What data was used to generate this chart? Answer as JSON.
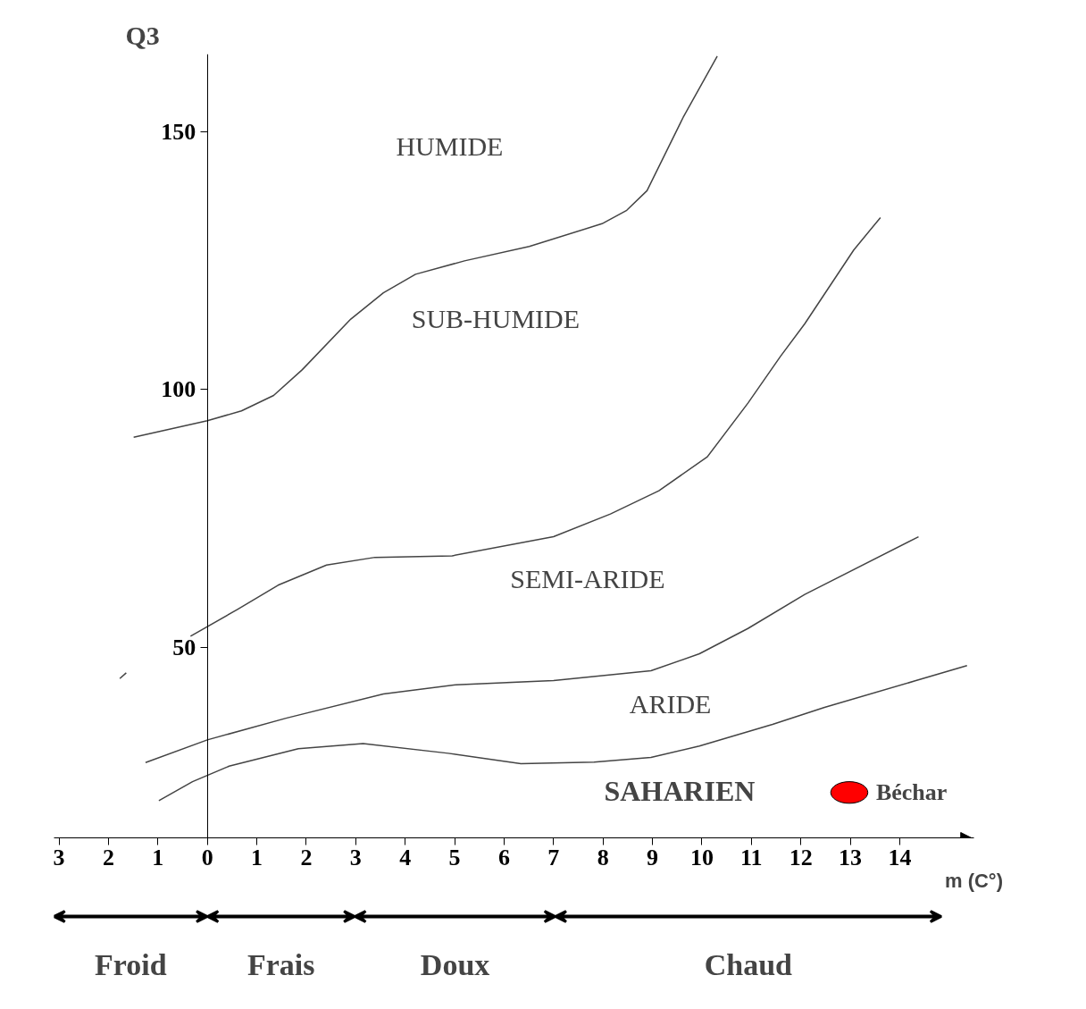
{
  "chart_data": {
    "type": "line",
    "xlabel": "m (C°)",
    "ylabel": "Q3",
    "xlim": [
      -3.1,
      15.5
    ],
    "ylim": [
      13,
      165
    ],
    "xticks": [
      {
        "value": -3,
        "label": "3"
      },
      {
        "value": -2,
        "label": "2"
      },
      {
        "value": -1,
        "label": "1"
      },
      0,
      1,
      2,
      3,
      4,
      5,
      6,
      7,
      8,
      9,
      10,
      11,
      12,
      13,
      14
    ],
    "yticks": [
      50,
      100,
      150
    ],
    "grid": false,
    "legend": false,
    "marker": "none",
    "line_style": "solid",
    "series": [
      {
        "color": "#444444",
        "x": [
          -1.49,
          0,
          0.69,
          1.34,
          1.92,
          2.9,
          3.56,
          4.21,
          5.2,
          6.51,
          7.98,
          8.48,
          8.89,
          9.62,
          10.31
        ],
        "values": [
          90.7,
          93.9,
          95.8,
          98.8,
          103.8,
          113.6,
          118.7,
          122.3,
          124.9,
          127.7,
          132.1,
          134.7,
          138.5,
          152.7,
          164.6
        ]
      },
      {
        "color": "#444444",
        "x": [
          -0.34,
          0.61,
          1.43,
          2.41,
          3.39,
          4.95,
          7.0,
          8.15,
          9.13,
          10.11,
          10.93,
          11.59,
          12.08,
          13.07,
          13.61
        ],
        "values": [
          52.1,
          57.3,
          62.0,
          65.9,
          67.4,
          67.7,
          71.4,
          75.8,
          80.3,
          86.9,
          97.3,
          106.4,
          112.7,
          127.0,
          133.3
        ]
      },
      {
        "color": "#444444",
        "x": [
          -1.77,
          -1.64
        ],
        "values": [
          43.9,
          45.0
        ]
      },
      {
        "color": "#444444",
        "x": [
          -1.25,
          0,
          1.59,
          3.56,
          5.03,
          7.0,
          8.97,
          9.95,
          10.93,
          12.08,
          14.38
        ],
        "values": [
          27.6,
          32.0,
          36.2,
          40.9,
          42.7,
          43.5,
          45.4,
          48.7,
          53.6,
          60.2,
          71.4
        ]
      },
      {
        "color": "#444444",
        "x": [
          -0.98,
          -0.3,
          0.44,
          1.84,
          3.15,
          4.87,
          6.34,
          7.82,
          8.97,
          9.95,
          11.43,
          12.48,
          15.36
        ],
        "values": [
          20.2,
          23.9,
          26.9,
          30.3,
          31.3,
          29.4,
          27.4,
          27.7,
          28.6,
          30.8,
          35.0,
          38.3,
          46.4
        ]
      },
      {
        "type": "scatter",
        "name": "Béchar",
        "color": "#ff0000",
        "marker": "circle",
        "x": [
          12.98
        ],
        "values": [
          21.8
        ]
      }
    ],
    "annotations": [
      "HUMIDE",
      "SUB-HUMIDE",
      "SEMI-ARIDE",
      "ARIDE",
      "SAHARIEN",
      "Froid",
      "Frais",
      "Doux",
      "Chaud"
    ]
  }
}
